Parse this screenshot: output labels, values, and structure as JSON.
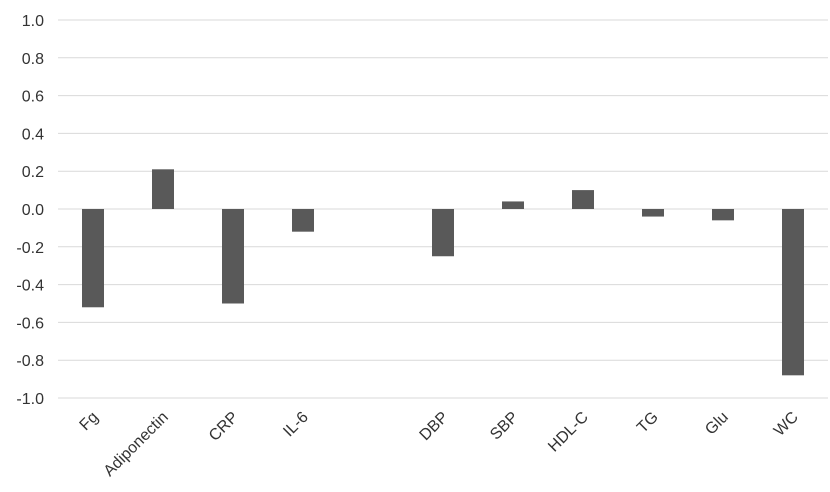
{
  "chart_data": {
    "type": "bar",
    "title": "",
    "xlabel": "",
    "ylabel": "",
    "ylim": [
      -1.0,
      1.0
    ],
    "yticks": [
      "1.0",
      "0.8",
      "0.6",
      "0.4",
      "0.2",
      "0.0",
      "-0.2",
      "-0.4",
      "-0.6",
      "-0.8",
      "-1.0"
    ],
    "grid": true,
    "bar_color": "#595959",
    "categories": [
      "Fg",
      "Adiponectin",
      "CRP",
      "IL-6",
      "",
      "DBP",
      "SBP",
      "HDL-C",
      "TG",
      "Glu",
      "WC"
    ],
    "values": [
      -0.52,
      0.21,
      -0.5,
      -0.12,
      null,
      -0.25,
      0.04,
      0.1,
      -0.04,
      -0.06,
      -0.88
    ]
  }
}
